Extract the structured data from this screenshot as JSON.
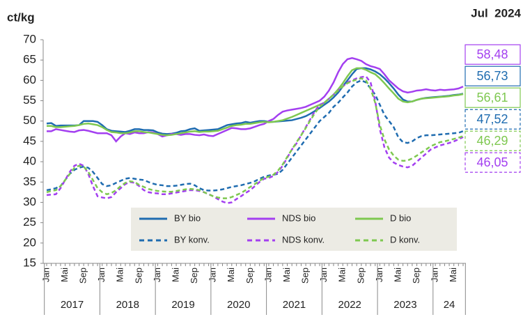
{
  "chart_data": {
    "type": "line",
    "y_unit": "ct/kg",
    "date_label": "Jul  2024",
    "categories": [
      "Jan",
      null,
      null,
      null,
      "Mai",
      null,
      null,
      null,
      "Sep",
      null,
      null,
      null,
      "Jan",
      null,
      null,
      null,
      "Mai",
      null,
      null,
      null,
      "Sep",
      null,
      null,
      null,
      "Jan",
      null,
      null,
      null,
      "Mai",
      null,
      null,
      null,
      "Sep",
      null,
      null,
      null,
      "Jan",
      null,
      null,
      null,
      "Mai",
      null,
      null,
      null,
      "Sep",
      null,
      null,
      null,
      "Jan",
      null,
      null,
      null,
      "Mai",
      null,
      null,
      null,
      "Sep",
      null,
      null,
      null,
      "Jan",
      null,
      null,
      null,
      "Mai",
      null,
      null,
      null,
      "Sep",
      null,
      null,
      null,
      "Jan",
      null,
      null,
      null,
      "Mai",
      null,
      null,
      null,
      "Sep",
      null,
      null,
      null,
      "Jan",
      null,
      null,
      null,
      "Mai",
      null,
      null
    ],
    "years": [
      "2017",
      "2018",
      "2019",
      "2020",
      "2021",
      "2022",
      "2023",
      "24"
    ],
    "ylim": [
      15,
      70
    ],
    "yticks": [
      15,
      20,
      25,
      30,
      35,
      40,
      45,
      50,
      55,
      60,
      65,
      70
    ],
    "grid": false,
    "series": [
      {
        "name": "BY bio",
        "color": "#1f6cb0",
        "dash": false,
        "end_label": "56,73",
        "values": [
          49.4,
          49.5,
          48.8,
          48.9,
          48.9,
          48.9,
          48.9,
          49.0,
          50.0,
          50.0,
          50.0,
          49.8,
          49.0,
          48.0,
          47.6,
          47.5,
          47.4,
          47.3,
          47.6,
          48.0,
          48.0,
          47.8,
          47.8,
          47.7,
          47.2,
          46.9,
          46.8,
          46.9,
          47.1,
          47.5,
          47.6,
          48.0,
          48.2,
          47.6,
          47.7,
          47.8,
          47.9,
          48.0,
          48.5,
          49.0,
          49.2,
          49.4,
          49.5,
          49.8,
          49.6,
          49.8,
          50.0,
          50.0,
          49.8,
          49.8,
          49.9,
          50.0,
          50.1,
          50.2,
          50.5,
          50.8,
          51.2,
          51.8,
          52.5,
          53.2,
          54.0,
          54.8,
          55.8,
          57.0,
          58.5,
          60.0,
          61.5,
          62.8,
          63.0,
          63.0,
          62.7,
          62.2,
          61.5,
          60.5,
          59.3,
          58.0,
          56.5,
          55.3,
          54.8,
          54.8,
          55.2,
          55.5,
          55.7,
          55.8,
          55.9,
          56.0,
          56.1,
          56.2,
          56.4,
          56.5,
          56.73
        ]
      },
      {
        "name": "NDS bio",
        "color": "#a33ff0",
        "dash": false,
        "end_label": "58,48",
        "values": [
          47.5,
          47.5,
          48.0,
          47.8,
          47.6,
          47.4,
          47.3,
          47.7,
          47.8,
          47.6,
          47.3,
          47.0,
          47.0,
          47.0,
          46.5,
          45.0,
          46.2,
          47.0,
          46.8,
          47.2,
          47.0,
          47.0,
          47.3,
          47.2,
          46.8,
          46.2,
          46.5,
          46.8,
          46.8,
          46.6,
          46.8,
          46.8,
          46.6,
          46.5,
          46.7,
          46.4,
          46.3,
          46.8,
          47.3,
          47.8,
          48.3,
          48.2,
          48.0,
          48.0,
          48.2,
          48.6,
          49.0,
          49.3,
          50.0,
          50.5,
          51.5,
          52.3,
          52.6,
          52.8,
          53.0,
          53.2,
          53.5,
          54.0,
          54.5,
          55.0,
          56.0,
          57.5,
          59.5,
          62.0,
          64.0,
          65.2,
          65.5,
          65.2,
          64.8,
          64.0,
          63.5,
          63.2,
          62.8,
          61.5,
          60.0,
          59.0,
          58.0,
          57.3,
          57.0,
          57.2,
          57.5,
          57.6,
          57.8,
          57.6,
          57.5,
          57.7,
          57.6,
          57.7,
          57.8,
          58.0,
          58.48
        ]
      },
      {
        "name": "D bio",
        "color": "#7ec850",
        "dash": false,
        "end_label": "56,61",
        "values": [
          48.8,
          48.8,
          48.5,
          48.5,
          48.6,
          48.7,
          48.8,
          49.0,
          49.3,
          49.4,
          49.2,
          49.0,
          48.5,
          47.8,
          47.3,
          47.2,
          47.0,
          47.0,
          47.2,
          47.5,
          47.5,
          47.3,
          47.2,
          47.0,
          46.8,
          46.6,
          46.5,
          46.6,
          46.8,
          47.0,
          47.2,
          47.4,
          47.5,
          47.3,
          47.4,
          47.4,
          47.5,
          47.6,
          48.0,
          48.4,
          48.8,
          49.0,
          49.1,
          49.3,
          49.3,
          49.5,
          49.7,
          49.8,
          49.7,
          49.8,
          50.0,
          50.2,
          50.6,
          51.0,
          51.5,
          52.0,
          52.5,
          53.0,
          53.5,
          54.0,
          54.5,
          55.5,
          56.5,
          57.8,
          59.3,
          61.0,
          62.5,
          63.0,
          63.0,
          62.6,
          62.0,
          61.5,
          60.5,
          59.3,
          58.0,
          56.8,
          55.5,
          54.8,
          54.6,
          54.8,
          55.2,
          55.5,
          55.6,
          55.7,
          55.8,
          55.9,
          56.0,
          56.1,
          56.3,
          56.4,
          56.61
        ]
      },
      {
        "name": "BY konv.",
        "color": "#1f6cb0",
        "dash": true,
        "end_label": "47,52",
        "values": [
          33.0,
          33.2,
          33.5,
          34.0,
          35.5,
          37.0,
          38.0,
          38.5,
          38.8,
          38.5,
          37.5,
          36.0,
          34.5,
          34.0,
          34.2,
          34.8,
          35.3,
          35.8,
          36.0,
          35.8,
          35.6,
          35.5,
          35.0,
          34.6,
          34.3,
          34.2,
          34.0,
          34.0,
          34.1,
          34.3,
          34.5,
          34.6,
          34.2,
          33.5,
          33.0,
          32.9,
          32.9,
          33.0,
          33.2,
          33.5,
          33.8,
          34.0,
          34.2,
          34.5,
          34.8,
          35.2,
          35.8,
          36.3,
          36.6,
          36.8,
          37.0,
          38.0,
          39.5,
          41.0,
          42.5,
          44.0,
          45.5,
          47.0,
          48.5,
          50.0,
          51.0,
          52.0,
          53.5,
          54.5,
          55.8,
          57.0,
          58.5,
          59.5,
          60.0,
          59.5,
          58.0,
          56.5,
          54.0,
          51.5,
          50.0,
          48.5,
          46.0,
          44.8,
          44.6,
          45.0,
          45.8,
          46.3,
          46.5,
          46.5,
          46.6,
          46.7,
          46.8,
          46.9,
          47.0,
          47.1,
          47.52
        ]
      },
      {
        "name": "NDS konv.",
        "color": "#a33ff0",
        "dash": true,
        "end_label": "46,05",
        "values": [
          31.8,
          31.9,
          32.0,
          33.5,
          35.5,
          37.5,
          39.0,
          39.5,
          39.0,
          37.0,
          34.0,
          31.5,
          31.2,
          31.0,
          31.3,
          32.5,
          33.5,
          34.5,
          35.0,
          34.8,
          34.0,
          33.0,
          32.5,
          32.3,
          32.2,
          32.0,
          32.0,
          32.2,
          32.4,
          32.6,
          32.8,
          33.0,
          33.0,
          32.8,
          32.5,
          32.0,
          31.5,
          30.8,
          30.2,
          29.8,
          30.0,
          30.8,
          31.5,
          32.3,
          33.0,
          34.0,
          35.0,
          35.8,
          36.0,
          36.5,
          37.5,
          39.0,
          41.0,
          43.0,
          44.5,
          46.5,
          48.5,
          50.5,
          52.5,
          54.0,
          54.5,
          55.5,
          56.5,
          57.5,
          58.5,
          59.5,
          60.0,
          60.5,
          60.8,
          61.0,
          59.5,
          55.0,
          48.0,
          43.5,
          41.0,
          39.8,
          39.2,
          38.8,
          38.6,
          39.0,
          40.0,
          41.0,
          42.0,
          43.0,
          43.5,
          44.0,
          44.3,
          44.6,
          45.0,
          45.5,
          46.05
        ]
      },
      {
        "name": "D konv.",
        "color": "#7ec850",
        "dash": true,
        "end_label": "46,29",
        "values": [
          32.5,
          32.8,
          33.0,
          34.0,
          35.5,
          37.0,
          38.5,
          39.0,
          38.8,
          37.5,
          35.5,
          33.5,
          32.5,
          32.0,
          32.3,
          33.0,
          34.0,
          34.8,
          35.2,
          35.0,
          34.3,
          33.8,
          33.3,
          33.0,
          32.8,
          32.7,
          32.6,
          32.6,
          32.8,
          33.0,
          33.2,
          33.3,
          33.2,
          33.0,
          32.5,
          32.0,
          31.5,
          31.2,
          31.0,
          31.0,
          31.3,
          31.8,
          32.3,
          33.0,
          33.8,
          34.5,
          35.3,
          36.0,
          36.3,
          36.8,
          37.8,
          39.3,
          41.2,
          43.0,
          44.8,
          46.5,
          48.3,
          50.2,
          52.0,
          53.5,
          54.5,
          55.5,
          56.5,
          57.5,
          58.5,
          59.3,
          59.8,
          60.2,
          60.5,
          60.0,
          58.0,
          54.5,
          49.0,
          45.5,
          43.0,
          41.5,
          40.5,
          40.2,
          40.3,
          40.8,
          41.5,
          42.3,
          43.0,
          43.8,
          44.3,
          44.8,
          45.0,
          45.3,
          45.6,
          45.9,
          46.29
        ]
      }
    ]
  }
}
